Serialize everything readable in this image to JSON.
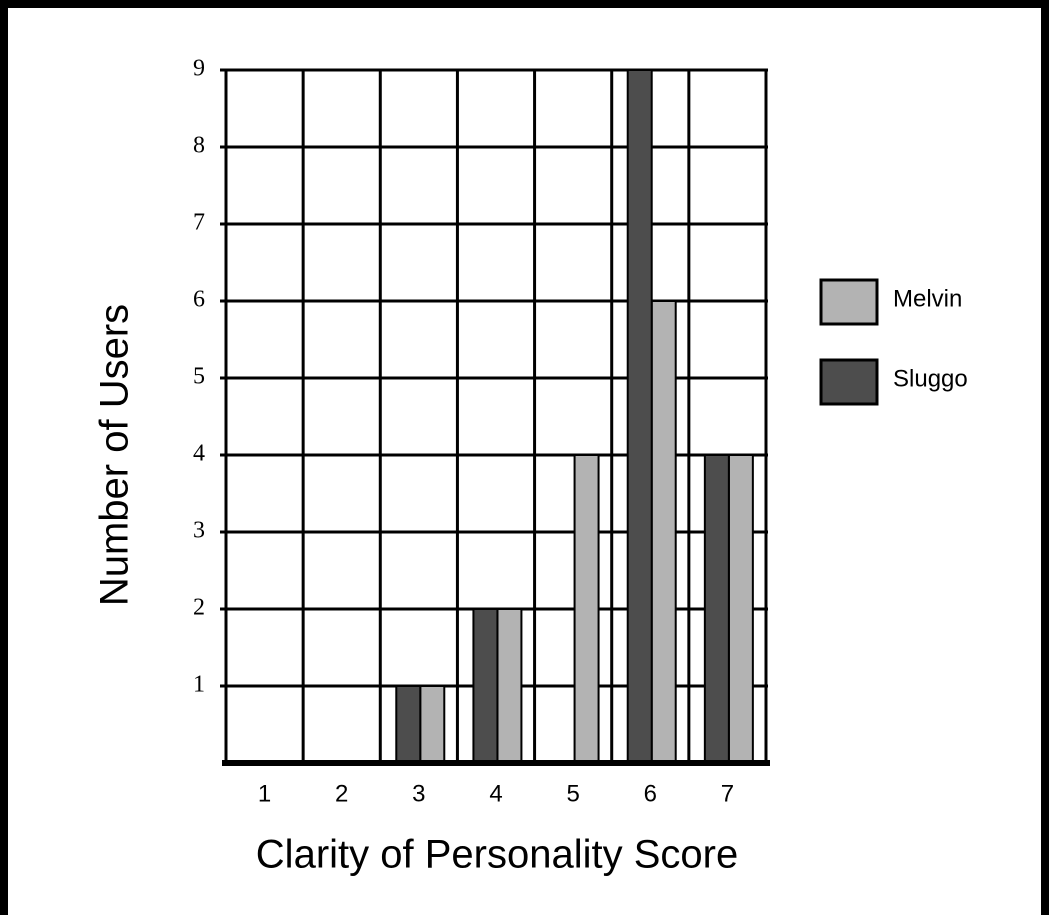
{
  "chart_data": {
    "type": "bar",
    "xlabel": "Clarity of Personality Score",
    "ylabel": "Number of Users",
    "categories": [
      "1",
      "2",
      "3",
      "4",
      "5",
      "6",
      "7"
    ],
    "series": [
      {
        "name": "Melvin",
        "color": "#b3b3b3",
        "values": [
          0,
          0,
          1,
          2,
          4,
          6,
          4
        ]
      },
      {
        "name": "Sluggo",
        "color": "#4d4d4d",
        "values": [
          0,
          0,
          1,
          2,
          0,
          9,
          4
        ]
      }
    ],
    "ylim": [
      0,
      9
    ],
    "yticks": [
      1,
      2,
      3,
      4,
      5,
      6,
      7,
      8,
      9
    ],
    "grid": true,
    "legend": "right"
  }
}
